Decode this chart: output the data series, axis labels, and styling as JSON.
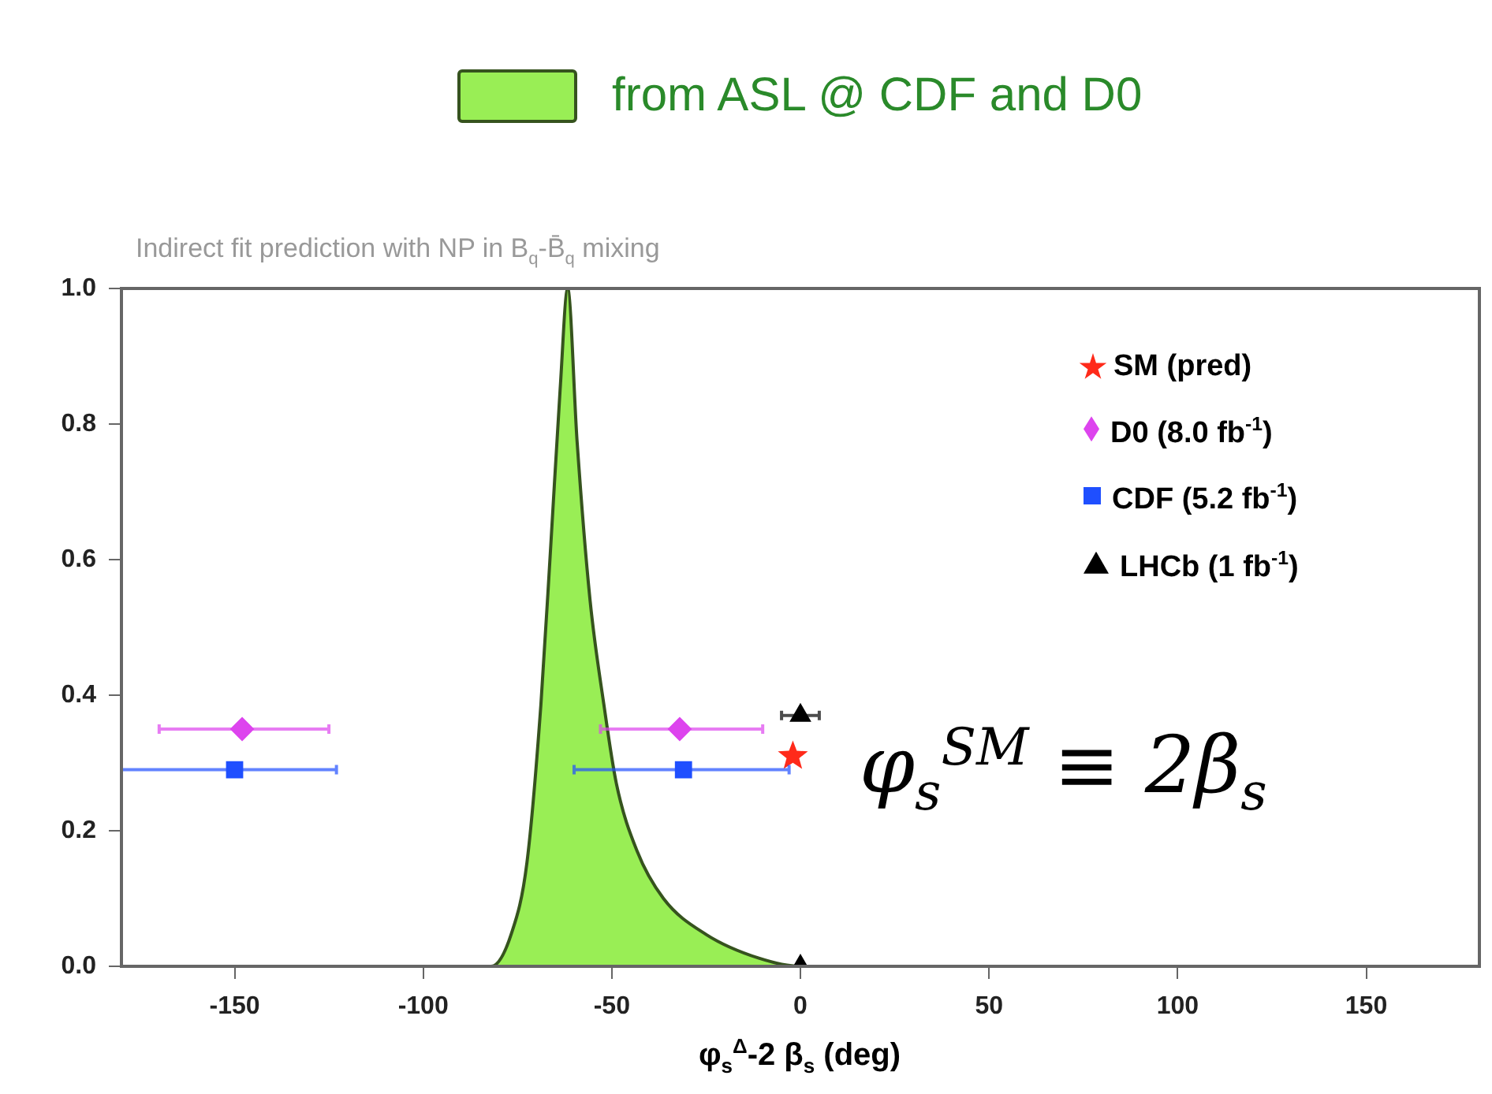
{
  "chart_data": {
    "type": "scatter",
    "subtitle": "Indirect fit prediction with NP in B$_{q}$-B̄$_{q}$ mixing",
    "xlabel": "φ$_{s}$$^{Δ}$-2 β$_{s}$ (deg)",
    "legend": "top right",
    "xlim": [
      -180,
      180
    ],
    "xticks": [
      -150,
      -100,
      -50,
      0,
      50,
      100,
      150
    ],
    "ylim": [
      0,
      1
    ],
    "yticks": [
      {
        "value": 0,
        "label": "0.0"
      },
      {
        "value": 0.2,
        "label": "0.2"
      },
      {
        "value": 0.4,
        "label": "0.4"
      },
      {
        "value": 0.6,
        "label": "0.6"
      },
      {
        "value": 0.8,
        "label": "0.8"
      },
      {
        "value": 1,
        "label": "1.0"
      }
    ],
    "annotations": [
      "φ$_{s}$$^{SM}$ ≡ 2β$_{s}$"
    ],
    "series": [
      {
        "name": "from ASL @ CDF and D0",
        "type": "area",
        "color": "#99ee55",
        "x": [
          -180,
          -82,
          -76.7,
          -72.5,
          -68.8,
          -66.2,
          -63.7,
          -61.7,
          -59.2,
          -55.8,
          -52.1,
          -48.8,
          -43.3,
          -36.3,
          -25,
          -11,
          0,
          180
        ],
        "values": [
          0,
          0,
          0.047,
          0.153,
          0.386,
          0.619,
          0.851,
          1,
          0.774,
          0.542,
          0.386,
          0.27,
          0.17,
          0.1,
          0.047,
          0.012,
          0,
          0
        ]
      },
      {
        "name": "SM (pred)",
        "marker": "star",
        "color": "#ff2a1a",
        "x": [
          -2
        ],
        "values": [
          0.31
        ]
      },
      {
        "name": "D0 (8.0 fb$^{-1}$)",
        "marker": "diamond",
        "color": "#dd44ee",
        "x": [
          -148,
          -32
        ],
        "values": [
          0.35,
          0.35
        ],
        "xerrors": [
          [
            -170,
            -125
          ],
          [
            -53,
            -10
          ]
        ]
      },
      {
        "name": "CDF (5.2 fb$^{-1}$)",
        "marker": "square",
        "color": "#1f4fff",
        "x": [
          -150,
          -31
        ],
        "values": [
          0.29,
          0.29
        ],
        "xerrors": [
          [
            -180,
            -123
          ],
          [
            -60,
            -3
          ]
        ]
      },
      {
        "name": "LHCb (1 fb$^{-1}$)",
        "marker": "triangle",
        "color": "#000000",
        "x": [
          0,
          0
        ],
        "values": [
          0.37,
          0
        ],
        "xerrors": [
          [
            -5,
            5
          ],
          null
        ]
      }
    ]
  }
}
